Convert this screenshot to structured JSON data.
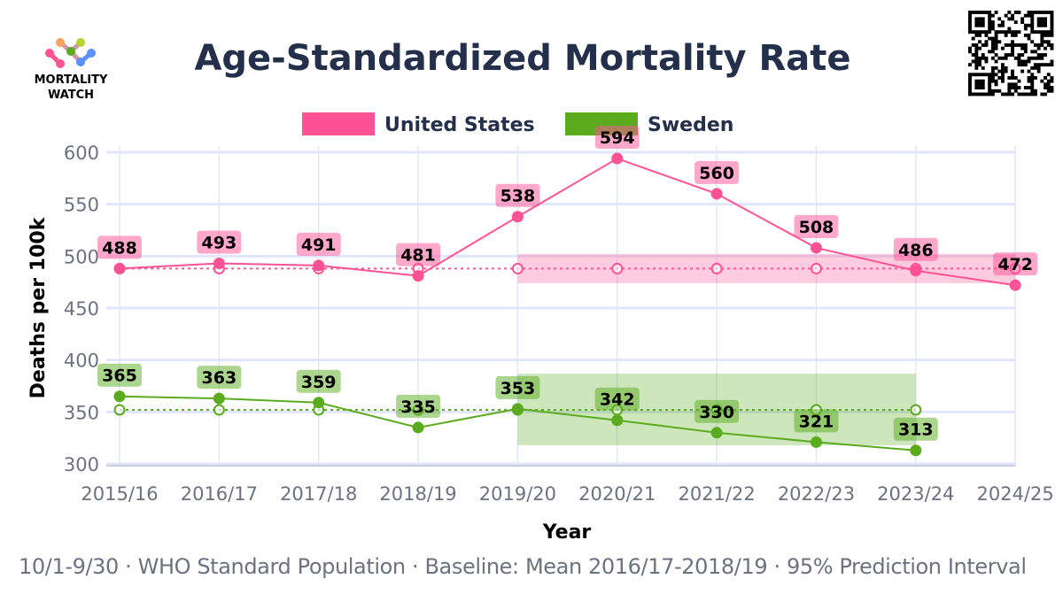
{
  "logo": {
    "line1": "MORTALITY",
    "line2": "WATCH"
  },
  "chart_data": {
    "type": "line",
    "title": "Age-Standardized Mortality Rate",
    "xlabel": "Year",
    "ylabel": "Deaths per 100k",
    "footnote": "10/1-9/30 · WHO Standard Population · Baseline: Mean 2016/17-2018/19 · 95% Prediction Interval",
    "categories": [
      "2015/16",
      "2016/17",
      "2017/18",
      "2018/19",
      "2019/20",
      "2020/21",
      "2021/22",
      "2022/23",
      "2023/24",
      "2024/25"
    ],
    "ylim": [
      295,
      605
    ],
    "yticks": [
      300,
      350,
      400,
      450,
      500,
      550,
      600
    ],
    "grid": true,
    "legend_placement": "top-center",
    "series": [
      {
        "name": "United States",
        "color": "#ff5294",
        "values": [
          488,
          493,
          491,
          481,
          538,
          594,
          560,
          508,
          486,
          472
        ],
        "baseline": [
          488,
          488,
          488,
          488,
          488,
          488,
          488,
          488,
          488,
          488
        ],
        "pi_start": "2019/20",
        "pi_lower": 474,
        "pi_upper": 502
      },
      {
        "name": "Sweden",
        "color": "#5aab1e",
        "values": [
          365,
          363,
          359,
          335,
          353,
          342,
          330,
          321,
          313,
          null
        ],
        "baseline": [
          352,
          352,
          352,
          352,
          352,
          352,
          352,
          352,
          352,
          null
        ],
        "pi_start": "2019/20",
        "pi_lower": 318,
        "pi_upper": 387
      }
    ]
  }
}
